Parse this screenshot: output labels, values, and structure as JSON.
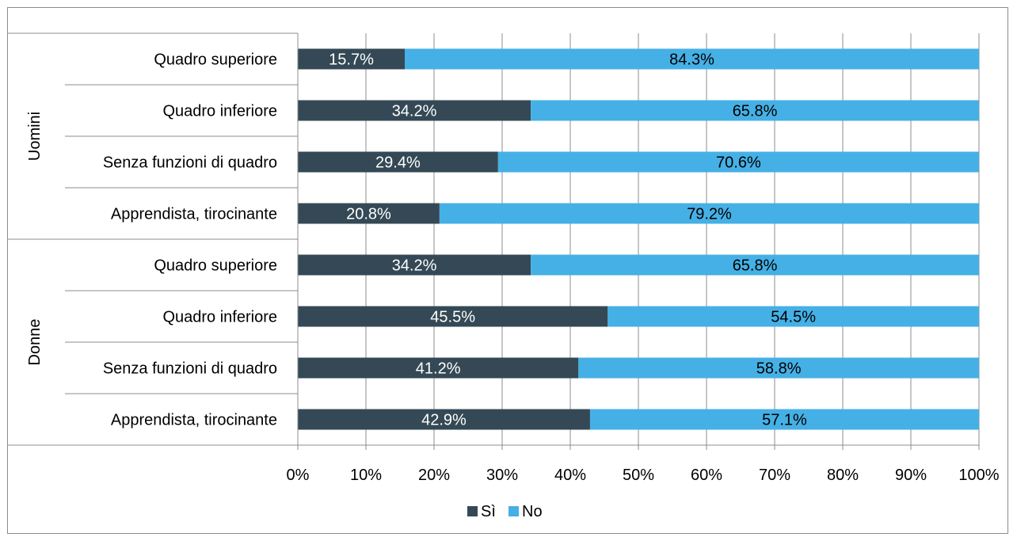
{
  "chart_data": {
    "type": "bar",
    "orientation": "horizontal",
    "stacked": true,
    "percent": true,
    "groups": [
      {
        "name": "Uomini",
        "categories": [
          "Quadro superiore",
          "Quadro inferiore",
          "Senza funzioni di quadro",
          "Apprendista, tirocinante"
        ]
      },
      {
        "name": "Donne",
        "categories": [
          "Quadro superiore",
          "Quadro inferiore",
          "Senza funzioni di quadro",
          "Apprendista, tirocinante"
        ]
      }
    ],
    "series": [
      {
        "name": "Sì",
        "color": "#344955",
        "label_color": "#ffffff",
        "values": [
          15.7,
          34.2,
          29.4,
          20.8,
          34.2,
          45.5,
          41.2,
          42.9
        ],
        "labels": [
          "15.7%",
          "34.2%",
          "29.4%",
          "20.8%",
          "34.2%",
          "45.5%",
          "41.2%",
          "42.9%"
        ]
      },
      {
        "name": "No",
        "color": "#45b0e5",
        "label_color": "#000000",
        "values": [
          84.3,
          65.8,
          70.6,
          79.2,
          65.8,
          54.5,
          58.8,
          57.1
        ],
        "labels": [
          "84.3%",
          "65.8%",
          "70.6%",
          "79.2%",
          "65.8%",
          "54.5%",
          "58.8%",
          "57.1%"
        ]
      }
    ],
    "x_ticks": [
      "0%",
      "10%",
      "20%",
      "30%",
      "40%",
      "50%",
      "60%",
      "70%",
      "80%",
      "90%",
      "100%"
    ],
    "xlim": [
      0,
      100
    ],
    "grid": true,
    "legend": "bottom"
  }
}
